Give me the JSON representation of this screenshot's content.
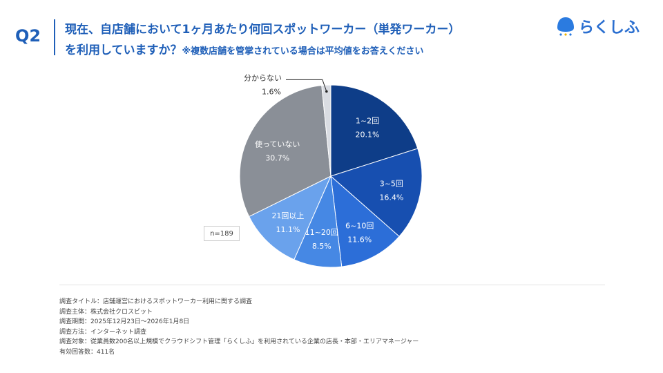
{
  "header": {
    "question_no": "Q2",
    "title_line1": "現在、自店舗において1ヶ月あたり何回スポットワーカー（単発ワーカー）",
    "title_line2": "を利用していますか？",
    "title_note": "※複数店舗を管掌されている場合は平均値をお答えください",
    "logo_text": "らくしふ"
  },
  "chart_data": {
    "type": "pie",
    "start": "12 o'clock, clockwise",
    "sample_size": "n=189",
    "slices": [
      {
        "label": "1~2回",
        "value": 20.1,
        "value_label": "20.1%",
        "color": "#0e3d88"
      },
      {
        "label": "3~5回",
        "value": 16.4,
        "value_label": "16.4%",
        "color": "#174fb0"
      },
      {
        "label": "6~10回",
        "value": 11.6,
        "value_label": "11.6%",
        "color": "#2c6ed8"
      },
      {
        "label": "11~20回",
        "value": 8.5,
        "value_label": "8.5%",
        "color": "#4688e4"
      },
      {
        "label": "21回以上",
        "value": 11.1,
        "value_label": "11.1%",
        "color": "#6aa2ec"
      },
      {
        "label": "使っていない",
        "value": 30.7,
        "value_label": "30.7%",
        "color": "#8a8f97"
      },
      {
        "label": "分からない",
        "value": 1.6,
        "value_label": "1.6%",
        "color": "#d9dce2"
      }
    ]
  },
  "footer": {
    "lines": [
      "調査タイトル：店舗運営におけるスポットワーカー利用に関する調査",
      "調査主体：株式会社クロスビット",
      "調査期間：2025年12月23日〜2026年1月8日",
      "調査方法：インターネット調査",
      "調査対象：従業員数200名以上規模でクラウドシフト管理「らくしふ」を利用されている企業の店長・本部・エリアマネージャー",
      "有効回答数：411名"
    ]
  }
}
